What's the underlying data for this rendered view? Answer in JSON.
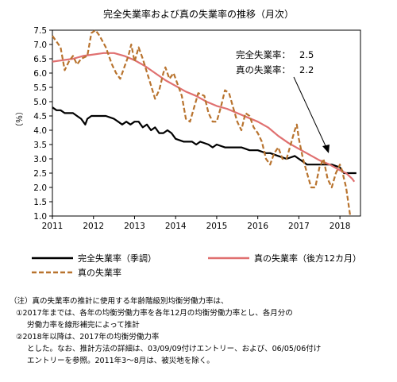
{
  "chart_data": {
    "type": "line",
    "title": "完全失業率および真の失業率の推移（月次）",
    "ylabel": "（％）",
    "xlabel": "",
    "ylim": [
      1.0,
      7.5
    ],
    "xlim": [
      2011.0,
      2018.5
    ],
    "yticks": [
      "1.0",
      "1.5",
      "2.0",
      "2.5",
      "3.0",
      "3.5",
      "4.0",
      "4.5",
      "5.0",
      "5.5",
      "6.0",
      "6.5",
      "7.0",
      "7.5"
    ],
    "xticks": [
      "2011",
      "2012",
      "2013",
      "2014",
      "2015",
      "2016",
      "2017",
      "2018"
    ],
    "grid": false,
    "legend_position": "bottom",
    "series": [
      {
        "name": "完全失業率（季調）",
        "color": "#000000",
        "style": "solid",
        "points": [
          [
            2011.0,
            4.8
          ],
          [
            2011.1,
            4.7
          ],
          [
            2011.2,
            4.7
          ],
          [
            2011.3,
            4.6
          ],
          [
            2011.4,
            4.6
          ],
          [
            2011.5,
            4.6
          ],
          [
            2011.6,
            4.5
          ],
          [
            2011.7,
            4.4
          ],
          [
            2011.8,
            4.2
          ],
          [
            2011.85,
            4.4
          ],
          [
            2011.95,
            4.5
          ],
          [
            2012.1,
            4.5
          ],
          [
            2012.3,
            4.5
          ],
          [
            2012.5,
            4.4
          ],
          [
            2012.6,
            4.3
          ],
          [
            2012.7,
            4.2
          ],
          [
            2012.8,
            4.3
          ],
          [
            2012.9,
            4.2
          ],
          [
            2013.0,
            4.3
          ],
          [
            2013.1,
            4.3
          ],
          [
            2013.2,
            4.1
          ],
          [
            2013.3,
            4.2
          ],
          [
            2013.4,
            4.0
          ],
          [
            2013.5,
            4.1
          ],
          [
            2013.6,
            3.9
          ],
          [
            2013.7,
            3.9
          ],
          [
            2013.8,
            4.0
          ],
          [
            2013.9,
            3.9
          ],
          [
            2014.0,
            3.7
          ],
          [
            2014.2,
            3.6
          ],
          [
            2014.4,
            3.6
          ],
          [
            2014.5,
            3.5
          ],
          [
            2014.6,
            3.6
          ],
          [
            2014.8,
            3.5
          ],
          [
            2014.9,
            3.4
          ],
          [
            2015.0,
            3.5
          ],
          [
            2015.2,
            3.4
          ],
          [
            2015.4,
            3.4
          ],
          [
            2015.6,
            3.4
          ],
          [
            2015.8,
            3.3
          ],
          [
            2016.0,
            3.3
          ],
          [
            2016.2,
            3.2
          ],
          [
            2016.3,
            3.2
          ],
          [
            2016.5,
            3.1
          ],
          [
            2016.7,
            3.0
          ],
          [
            2016.9,
            3.1
          ],
          [
            2017.0,
            3.0
          ],
          [
            2017.1,
            2.9
          ],
          [
            2017.2,
            2.8
          ],
          [
            2017.4,
            2.8
          ],
          [
            2017.6,
            2.8
          ],
          [
            2017.8,
            2.8
          ],
          [
            2018.0,
            2.7
          ],
          [
            2018.1,
            2.5
          ],
          [
            2018.2,
            2.5
          ],
          [
            2018.3,
            2.5
          ],
          [
            2018.4,
            2.5
          ]
        ]
      },
      {
        "name": "真の失業率（後方12カ月）",
        "color": "#e07070",
        "style": "solid",
        "points": [
          [
            2011.0,
            6.4
          ],
          [
            2011.25,
            6.45
          ],
          [
            2011.5,
            6.5
          ],
          [
            2011.75,
            6.6
          ],
          [
            2012.0,
            6.65
          ],
          [
            2012.25,
            6.7
          ],
          [
            2012.5,
            6.7
          ],
          [
            2012.75,
            6.6
          ],
          [
            2013.0,
            6.45
          ],
          [
            2013.25,
            6.25
          ],
          [
            2013.5,
            6.0
          ],
          [
            2013.75,
            5.75
          ],
          [
            2014.0,
            5.55
          ],
          [
            2014.25,
            5.35
          ],
          [
            2014.5,
            5.2
          ],
          [
            2014.75,
            5.0
          ],
          [
            2015.0,
            4.85
          ],
          [
            2015.25,
            4.75
          ],
          [
            2015.5,
            4.6
          ],
          [
            2015.75,
            4.45
          ],
          [
            2016.0,
            4.3
          ],
          [
            2016.25,
            4.1
          ],
          [
            2016.5,
            3.8
          ],
          [
            2016.75,
            3.55
          ],
          [
            2017.0,
            3.35
          ],
          [
            2017.25,
            3.15
          ],
          [
            2017.5,
            2.95
          ],
          [
            2017.75,
            2.8
          ],
          [
            2018.0,
            2.6
          ],
          [
            2018.15,
            2.5
          ],
          [
            2018.3,
            2.3
          ],
          [
            2018.35,
            2.2
          ]
        ]
      },
      {
        "name": "真の失業率",
        "color": "#b8732e",
        "style": "dashed",
        "points": [
          [
            2011.0,
            7.3
          ],
          [
            2011.1,
            7.1
          ],
          [
            2011.2,
            6.9
          ],
          [
            2011.3,
            6.1
          ],
          [
            2011.4,
            6.4
          ],
          [
            2011.5,
            6.6
          ],
          [
            2011.6,
            6.3
          ],
          [
            2011.7,
            6.5
          ],
          [
            2011.85,
            6.6
          ],
          [
            2011.95,
            7.4
          ],
          [
            2012.05,
            7.5
          ],
          [
            2012.15,
            7.3
          ],
          [
            2012.3,
            6.9
          ],
          [
            2012.45,
            6.3
          ],
          [
            2012.55,
            6.0
          ],
          [
            2012.65,
            5.8
          ],
          [
            2012.75,
            6.2
          ],
          [
            2012.85,
            6.6
          ],
          [
            2012.92,
            7.0
          ],
          [
            2013.0,
            6.4
          ],
          [
            2013.1,
            6.9
          ],
          [
            2013.2,
            6.5
          ],
          [
            2013.35,
            5.8
          ],
          [
            2013.5,
            5.1
          ],
          [
            2013.6,
            5.4
          ],
          [
            2013.7,
            6.0
          ],
          [
            2013.75,
            6.2
          ],
          [
            2013.85,
            5.8
          ],
          [
            2013.95,
            6.0
          ],
          [
            2014.05,
            5.6
          ],
          [
            2014.15,
            5.2
          ],
          [
            2014.25,
            4.4
          ],
          [
            2014.35,
            4.3
          ],
          [
            2014.45,
            4.8
          ],
          [
            2014.55,
            5.3
          ],
          [
            2014.7,
            5.2
          ],
          [
            2014.8,
            4.6
          ],
          [
            2014.9,
            4.3
          ],
          [
            2015.0,
            4.3
          ],
          [
            2015.1,
            4.8
          ],
          [
            2015.2,
            5.4
          ],
          [
            2015.3,
            5.3
          ],
          [
            2015.4,
            4.8
          ],
          [
            2015.5,
            4.3
          ],
          [
            2015.6,
            4.0
          ],
          [
            2015.7,
            4.6
          ],
          [
            2015.8,
            4.5
          ],
          [
            2015.9,
            4.1
          ],
          [
            2016.0,
            3.9
          ],
          [
            2016.1,
            3.6
          ],
          [
            2016.2,
            3.0
          ],
          [
            2016.3,
            2.8
          ],
          [
            2016.4,
            3.2
          ],
          [
            2016.5,
            3.4
          ],
          [
            2016.6,
            3.0
          ],
          [
            2016.7,
            3.0
          ],
          [
            2016.8,
            3.5
          ],
          [
            2016.9,
            4.0
          ],
          [
            2016.95,
            4.2
          ],
          [
            2017.0,
            3.7
          ],
          [
            2017.1,
            3.0
          ],
          [
            2017.2,
            2.5
          ],
          [
            2017.3,
            2.0
          ],
          [
            2017.4,
            2.0
          ],
          [
            2017.5,
            2.7
          ],
          [
            2017.6,
            3.0
          ],
          [
            2017.7,
            2.3
          ],
          [
            2017.8,
            2.0
          ],
          [
            2017.9,
            2.5
          ],
          [
            2018.0,
            2.8
          ],
          [
            2018.05,
            2.6
          ],
          [
            2018.15,
            2.0
          ],
          [
            2018.2,
            1.5
          ],
          [
            2018.25,
            1.0
          ]
        ]
      }
    ],
    "annotations": [
      {
        "label": "完全失業率：",
        "value": "2.5"
      },
      {
        "label": "真の失業率：",
        "value": "2.2"
      }
    ]
  },
  "notes": {
    "line1": "（注）真の失業率の推計に使用する年齢階級別均衡労働力率は、",
    "line2": "①2017年までは、各年の均衡労働力率を各年12月の均衡労働力率とし、各月分の",
    "line3": "労働力率を線形補完によって推計",
    "line4": "②2018年以降は、2017年の均衡労働力率",
    "line5": "とした。なお、推計方法の詳細は、03/09/09付けエントリー、および、06/05/06付け",
    "line6": "エントリーを参照。2011年3～8月は、被災地を除く。"
  }
}
